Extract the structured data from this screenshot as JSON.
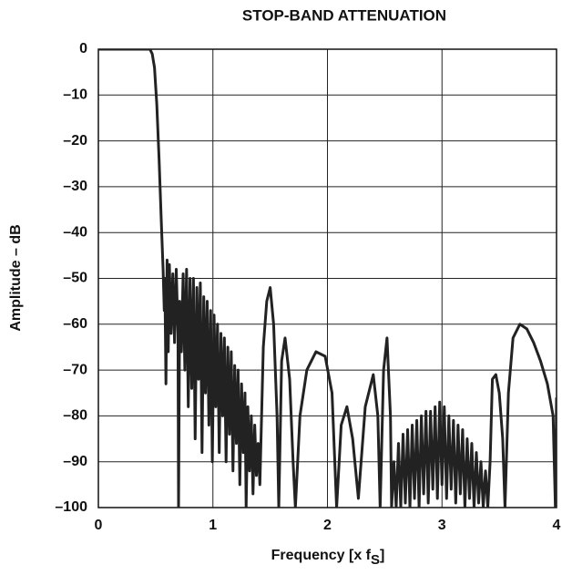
{
  "chart_data": {
    "type": "line",
    "title": "STOP-BAND ATTENUATION",
    "xlabel": [
      "Frequency [x f",
      "S",
      "]"
    ],
    "ylabel": "Amplitude – dB",
    "color": "#222222",
    "grid": true,
    "xlim": [
      0,
      4
    ],
    "xticks": [
      0,
      1,
      2,
      3,
      4
    ],
    "ylim": [
      -100,
      0
    ],
    "yticks": [
      0,
      {
        "value": -10,
        "label": "–10"
      },
      {
        "value": -20,
        "label": "–20"
      },
      {
        "value": -30,
        "label": "–30"
      },
      {
        "value": -40,
        "label": "–40"
      },
      {
        "value": -50,
        "label": "–50"
      },
      {
        "value": -60,
        "label": "–60"
      },
      {
        "value": -70,
        "label": "–70"
      },
      {
        "value": -80,
        "label": "–80"
      },
      {
        "value": -90,
        "label": "–90"
      },
      {
        "value": -100,
        "label": "–100"
      }
    ],
    "x": [
      0,
      0.45,
      0.47,
      0.49,
      0.51,
      0.53,
      0.55,
      0.565,
      0.575,
      0.58,
      0.59,
      0.6,
      0.61,
      0.62,
      0.635,
      0.65,
      0.665,
      0.68,
      0.695,
      0.7,
      0.71,
      0.725,
      0.74,
      0.755,
      0.77,
      0.785,
      0.8,
      0.815,
      0.83,
      0.845,
      0.86,
      0.875,
      0.89,
      0.905,
      0.92,
      0.935,
      0.95,
      0.965,
      0.98,
      0.995,
      1.01,
      1.025,
      1.04,
      1.055,
      1.07,
      1.085,
      1.1,
      1.115,
      1.13,
      1.145,
      1.16,
      1.175,
      1.19,
      1.205,
      1.22,
      1.235,
      1.25,
      1.265,
      1.28,
      1.29,
      1.305,
      1.32,
      1.335,
      1.35,
      1.365,
      1.38,
      1.395,
      1.41,
      1.44,
      1.47,
      1.5,
      1.53,
      1.56,
      1.575,
      1.6,
      1.63,
      1.67,
      1.7,
      1.72,
      1.76,
      1.82,
      1.9,
      1.98,
      2.04,
      2.08,
      2.12,
      2.17,
      2.22,
      2.27,
      2.33,
      2.4,
      2.44,
      2.46,
      2.49,
      2.52,
      2.55,
      2.56,
      2.58,
      2.6,
      2.62,
      2.64,
      2.66,
      2.68,
      2.7,
      2.72,
      2.74,
      2.76,
      2.78,
      2.8,
      2.82,
      2.84,
      2.86,
      2.88,
      2.9,
      2.92,
      2.94,
      2.96,
      2.98,
      3.0,
      3.02,
      3.04,
      3.06,
      3.08,
      3.1,
      3.12,
      3.14,
      3.16,
      3.18,
      3.2,
      3.22,
      3.24,
      3.26,
      3.28,
      3.3,
      3.32,
      3.34,
      3.36,
      3.38,
      3.4,
      3.42,
      3.44,
      3.47,
      3.5,
      3.53,
      3.55,
      3.58,
      3.62,
      3.68,
      3.74,
      3.8,
      3.86,
      3.92,
      3.97,
      3.99,
      4.0
    ],
    "values": [
      0,
      0,
      -1,
      -4,
      -12,
      -24,
      -38,
      -48,
      -57,
      -50,
      -73,
      -46,
      -66,
      -47,
      -62,
      -49,
      -64,
      -48,
      -62,
      -100,
      -55,
      -66,
      -49,
      -70,
      -48,
      -78,
      -50,
      -74,
      -50,
      -85,
      -52,
      -72,
      -51,
      -88,
      -54,
      -75,
      -55,
      -82,
      -57,
      -90,
      -58,
      -78,
      -60,
      -88,
      -62,
      -80,
      -63,
      -90,
      -65,
      -84,
      -66,
      -92,
      -69,
      -86,
      -70,
      -95,
      -73,
      -88,
      -75,
      -100,
      -78,
      -92,
      -80,
      -97,
      -82,
      -93,
      -86,
      -95,
      -65,
      -55,
      -52,
      -60,
      -80,
      -100,
      -68,
      -63,
      -72,
      -90,
      -100,
      -80,
      -70,
      -66,
      -67,
      -75,
      -100,
      -82,
      -78,
      -85,
      -98,
      -78,
      -71,
      -80,
      -100,
      -70,
      -63,
      -80,
      -100,
      -90,
      -100,
      -86,
      -100,
      -84,
      -99,
      -83,
      -100,
      -82,
      -98,
      -81,
      -100,
      -80,
      -97,
      -79,
      -99,
      -79,
      -96,
      -78,
      -98,
      -77,
      -95,
      -78,
      -98,
      -80,
      -96,
      -81,
      -99,
      -82,
      -97,
      -83,
      -100,
      -85,
      -98,
      -86,
      -100,
      -88,
      -99,
      -90,
      -100,
      -92,
      -100,
      -90,
      -72,
      -71,
      -75,
      -85,
      -100,
      -75,
      -63,
      -60,
      -61,
      -64,
      -68,
      -73,
      -80,
      -100,
      -76
    ]
  }
}
